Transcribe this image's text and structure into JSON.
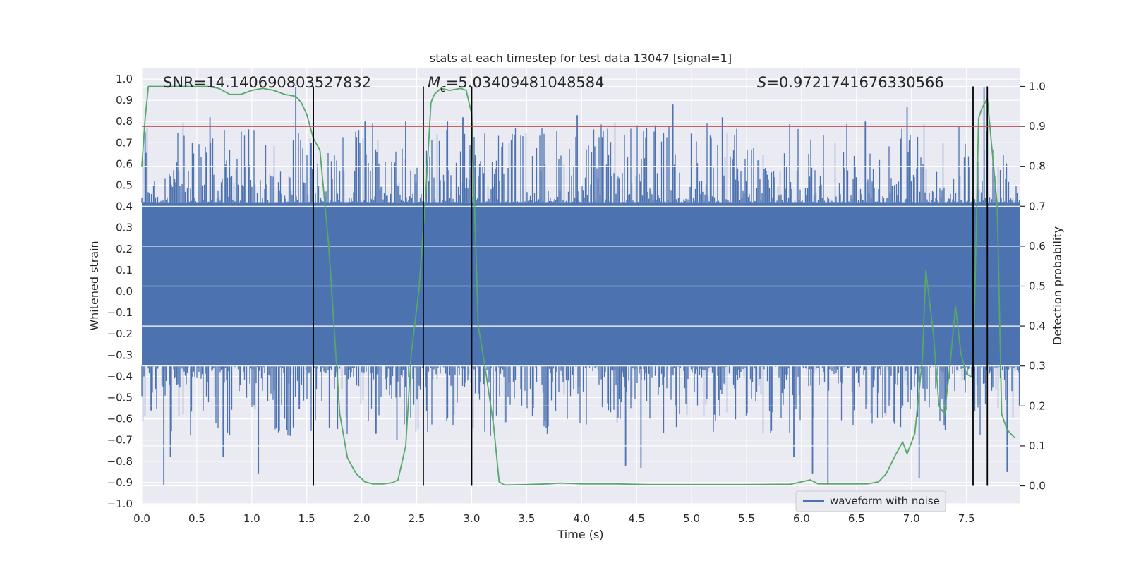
{
  "chart_data": {
    "type": "line",
    "title": "stats at each timestep for test data 13047 [signal=1]",
    "xlabel": "Time (s)",
    "ylabel": "Whitened strain",
    "y2label": "Detection probability",
    "xlim": [
      0.0,
      7.99
    ],
    "ylim": [
      -1.0,
      1.05
    ],
    "y2lim": [
      -0.045,
      1.045
    ],
    "x_ticks": [
      0.0,
      0.5,
      1.0,
      1.5,
      2.0,
      2.5,
      3.0,
      3.5,
      4.0,
      4.5,
      5.0,
      5.5,
      6.0,
      6.5,
      7.0,
      7.5
    ],
    "x_tick_labels": [
      "0.0",
      "0.5",
      "1.0",
      "1.5",
      "2.0",
      "2.5",
      "3.0",
      "3.5",
      "4.0",
      "4.5",
      "5.0",
      "5.5",
      "6.0",
      "6.5",
      "7.0",
      "7.5"
    ],
    "y_ticks": [
      -1.0,
      -0.9,
      -0.8,
      -0.7,
      -0.6,
      -0.5,
      -0.4,
      -0.3,
      -0.2,
      -0.1,
      0.0,
      0.1,
      0.2,
      0.3,
      0.4,
      0.5,
      0.6,
      0.7,
      0.8,
      0.9,
      1.0
    ],
    "y_tick_labels": [
      "−1.0",
      "−0.9",
      "−0.8",
      "−0.7",
      "−0.6",
      "−0.5",
      "−0.4",
      "−0.3",
      "−0.2",
      "−0.1",
      "0.0",
      "0.1",
      "0.2",
      "0.3",
      "0.4",
      "0.5",
      "0.6",
      "0.7",
      "0.8",
      "0.9",
      "1.0"
    ],
    "y2_ticks": [
      0.0,
      0.1,
      0.2,
      0.3,
      0.4,
      0.5,
      0.6,
      0.7,
      0.8,
      0.9,
      1.0
    ],
    "y2_tick_labels": [
      "0.0",
      "0.1",
      "0.2",
      "0.3",
      "0.4",
      "0.5",
      "0.6",
      "0.7",
      "0.8",
      "0.9",
      "1.0"
    ],
    "annotations": {
      "snr_label": "SNR=14.140690803527832",
      "mc_symbol": "M",
      "mc_subscript": "c",
      "mc_value": "=5.03409481048584",
      "s_symbol": "S",
      "s_value": "=0.9721741676330566"
    },
    "threshold": {
      "value": 0.9,
      "axis": "y2",
      "color": "#c44e52"
    },
    "vertical_lines": [
      1.56,
      2.56,
      3.0,
      7.56,
      7.69
    ],
    "legend": {
      "location": "lower-right",
      "entries": [
        {
          "label": "waveform with noise",
          "color": "#4c72b0"
        }
      ]
    },
    "series": [
      {
        "name": "waveform with noise",
        "axis": "y",
        "style": "noise-band",
        "color": "#4c72b0",
        "x_range": [
          0.0,
          8.0
        ],
        "core_envelope": [
          -0.35,
          0.42
        ],
        "spikes": [
          {
            "x": 0.03,
            "y": 0.75
          },
          {
            "x": 0.2,
            "y": -0.91
          },
          {
            "x": 0.26,
            "y": -0.78
          },
          {
            "x": 0.46,
            "y": 0.7
          },
          {
            "x": 0.62,
            "y": 0.82
          },
          {
            "x": 0.74,
            "y": -0.78
          },
          {
            "x": 1.06,
            "y": -0.86
          },
          {
            "x": 1.35,
            "y": -0.68
          },
          {
            "x": 1.4,
            "y": 0.97
          },
          {
            "x": 1.54,
            "y": 0.7
          },
          {
            "x": 2.03,
            "y": 0.8
          },
          {
            "x": 2.13,
            "y": -0.67
          },
          {
            "x": 2.32,
            "y": -0.7
          },
          {
            "x": 2.4,
            "y": 0.8
          },
          {
            "x": 2.78,
            "y": 0.8
          },
          {
            "x": 2.92,
            "y": 0.82
          },
          {
            "x": 3.17,
            "y": -0.68
          },
          {
            "x": 3.96,
            "y": 0.83
          },
          {
            "x": 4.4,
            "y": -0.82
          },
          {
            "x": 4.54,
            "y": -0.83
          },
          {
            "x": 4.83,
            "y": 0.88
          },
          {
            "x": 5.28,
            "y": 0.82
          },
          {
            "x": 5.93,
            "y": -0.78
          },
          {
            "x": 6.1,
            "y": -0.86
          },
          {
            "x": 6.24,
            "y": -0.91
          },
          {
            "x": 6.58,
            "y": 0.8
          },
          {
            "x": 6.96,
            "y": 0.87
          },
          {
            "x": 7.07,
            "y": -0.88
          },
          {
            "x": 7.66,
            "y": 0.96
          },
          {
            "x": 7.87,
            "y": -0.85
          }
        ]
      },
      {
        "name": "detection probability",
        "axis": "y2",
        "color": "#55a868",
        "x": [
          0.0,
          0.03,
          0.06,
          0.1,
          0.2,
          0.4,
          0.6,
          0.7,
          0.8,
          0.9,
          1.0,
          1.1,
          1.2,
          1.3,
          1.4,
          1.45,
          1.5,
          1.56,
          1.62,
          1.7,
          1.8,
          1.87,
          1.95,
          2.03,
          2.1,
          2.2,
          2.28,
          2.33,
          2.4,
          2.45,
          2.52,
          2.58,
          2.63,
          2.66,
          2.72,
          2.8,
          2.9,
          2.95,
          3.0,
          3.06,
          3.12,
          3.2,
          3.25,
          3.3,
          3.5,
          3.7,
          3.8,
          4.0,
          4.3,
          4.6,
          5.0,
          5.5,
          5.9,
          6.0,
          6.08,
          6.15,
          6.4,
          6.6,
          6.7,
          6.77,
          6.85,
          6.92,
          6.96,
          7.03,
          7.1,
          7.13,
          7.2,
          7.25,
          7.3,
          7.35,
          7.4,
          7.45,
          7.5,
          7.56,
          7.61,
          7.64,
          7.69,
          7.73,
          7.78,
          7.82,
          7.87,
          7.94
        ],
        "y": [
          0.8,
          0.92,
          1.0,
          1.0,
          1.0,
          1.0,
          1.0,
          0.995,
          0.98,
          0.98,
          0.99,
          0.995,
          0.99,
          0.98,
          0.975,
          0.96,
          0.93,
          0.87,
          0.84,
          0.6,
          0.18,
          0.07,
          0.03,
          0.01,
          0.005,
          0.005,
          0.008,
          0.015,
          0.1,
          0.33,
          0.49,
          0.72,
          0.96,
          0.98,
          0.995,
          0.99,
          0.995,
          0.99,
          0.93,
          0.4,
          0.3,
          0.15,
          0.01,
          0.002,
          0.003,
          0.005,
          0.007,
          0.005,
          0.005,
          0.003,
          0.003,
          0.003,
          0.004,
          0.01,
          0.015,
          0.005,
          0.005,
          0.005,
          0.01,
          0.03,
          0.075,
          0.11,
          0.08,
          0.13,
          0.32,
          0.54,
          0.38,
          0.2,
          0.18,
          0.3,
          0.45,
          0.33,
          0.28,
          0.27,
          0.92,
          0.945,
          0.97,
          0.85,
          0.7,
          0.18,
          0.14,
          0.12
        ]
      }
    ]
  }
}
